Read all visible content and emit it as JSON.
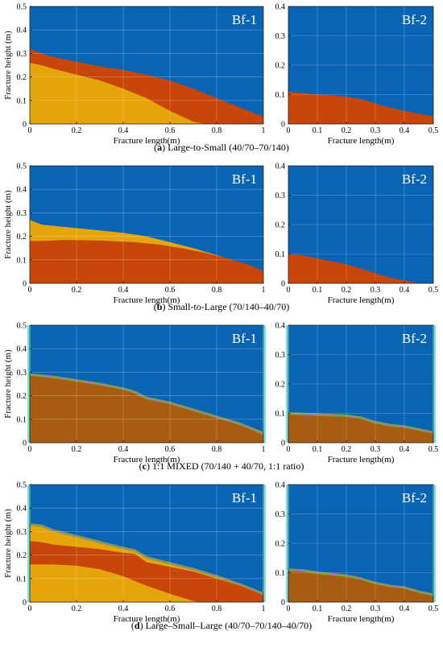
{
  "colors": {
    "blue": "#0a64b4",
    "orange": "#c8460a",
    "yellow": "#e6a50a",
    "cyan": "#78e6e6",
    "magenta": "#d050e6",
    "green": "#6ab81e",
    "olive": "#a85c12"
  },
  "chart_data": [
    {
      "type": "area",
      "title": "Bf-1",
      "xlabel": "Fracture length(m)",
      "ylabel": "Fracture height (m)",
      "xlim": [
        0,
        1
      ],
      "ylim": [
        0,
        0.5
      ],
      "xticks": [
        0,
        0.2,
        0.4,
        0.6,
        0.8,
        1
      ],
      "yticks": [
        0,
        0.1,
        0.2,
        0.3,
        0.4,
        0.5
      ],
      "grid": true,
      "layers": [
        {
          "color": "orange",
          "points": [
            [
              0,
              0.32
            ],
            [
              0.05,
              0.3
            ],
            [
              0.1,
              0.285
            ],
            [
              0.2,
              0.265
            ],
            [
              0.3,
              0.245
            ],
            [
              0.4,
              0.23
            ],
            [
              0.5,
              0.21
            ],
            [
              0.6,
              0.185
            ],
            [
              0.7,
              0.15
            ],
            [
              0.8,
              0.11
            ],
            [
              0.9,
              0.07
            ],
            [
              1,
              0.03
            ]
          ]
        },
        {
          "color": "yellow",
          "points": [
            [
              0,
              0.26
            ],
            [
              0.05,
              0.25
            ],
            [
              0.1,
              0.235
            ],
            [
              0.2,
              0.21
            ],
            [
              0.3,
              0.185
            ],
            [
              0.4,
              0.15
            ],
            [
              0.5,
              0.11
            ],
            [
              0.6,
              0.055
            ],
            [
              0.7,
              0.01
            ],
            [
              0.75,
              0
            ]
          ]
        }
      ]
    },
    {
      "type": "area",
      "title": "Bf-2",
      "xlabel": "Fracture length(m)",
      "ylabel": "",
      "xlim": [
        0,
        0.5
      ],
      "ylim": [
        0,
        0.4
      ],
      "xticks": [
        0,
        0.1,
        0.2,
        0.3,
        0.4,
        0.5
      ],
      "yticks": [
        0,
        0.1,
        0.2,
        0.3,
        0.4
      ],
      "grid": true,
      "layers": [
        {
          "color": "orange",
          "points": [
            [
              0,
              0.11
            ],
            [
              0.05,
              0.105
            ],
            [
              0.1,
              0.1
            ],
            [
              0.15,
              0.098
            ],
            [
              0.2,
              0.093
            ],
            [
              0.25,
              0.085
            ],
            [
              0.3,
              0.07
            ],
            [
              0.35,
              0.055
            ],
            [
              0.4,
              0.045
            ],
            [
              0.45,
              0.035
            ],
            [
              0.5,
              0.025
            ]
          ]
        }
      ]
    },
    {
      "type": "area",
      "title": "Bf-1",
      "xlabel": "Fracture length(m)",
      "ylabel": "Fracture height (m)",
      "xlim": [
        0,
        1
      ],
      "ylim": [
        0,
        0.5
      ],
      "xticks": [
        0,
        0.2,
        0.4,
        0.6,
        0.8,
        1
      ],
      "yticks": [
        0,
        0.1,
        0.2,
        0.3,
        0.4,
        0.5
      ],
      "grid": true,
      "layers": [
        {
          "color": "yellow",
          "points": [
            [
              0,
              0.27
            ],
            [
              0.05,
              0.25
            ],
            [
              0.1,
              0.245
            ],
            [
              0.2,
              0.235
            ],
            [
              0.3,
              0.225
            ],
            [
              0.4,
              0.215
            ],
            [
              0.5,
              0.2
            ],
            [
              0.6,
              0.175
            ],
            [
              0.7,
              0.15
            ],
            [
              0.8,
              0.12
            ],
            [
              0.9,
              0.09
            ],
            [
              1,
              0.05
            ]
          ]
        },
        {
          "color": "orange",
          "points": [
            [
              0,
              0.18
            ],
            [
              0.05,
              0.18
            ],
            [
              0.15,
              0.185
            ],
            [
              0.3,
              0.182
            ],
            [
              0.45,
              0.175
            ],
            [
              0.55,
              0.165
            ],
            [
              0.65,
              0.15
            ],
            [
              0.75,
              0.13
            ],
            [
              0.85,
              0.105
            ],
            [
              0.95,
              0.075
            ],
            [
              1,
              0.05
            ]
          ]
        }
      ]
    },
    {
      "type": "area",
      "title": "Bf-2",
      "xlabel": "Fracture length(m)",
      "ylabel": "",
      "xlim": [
        0,
        0.5
      ],
      "ylim": [
        0,
        0.4
      ],
      "xticks": [
        0,
        0.1,
        0.2,
        0.3,
        0.4,
        0.5
      ],
      "yticks": [
        0,
        0.1,
        0.2,
        0.3,
        0.4
      ],
      "grid": true,
      "layers": [
        {
          "color": "orange",
          "points": [
            [
              0,
              0.1
            ],
            [
              0.05,
              0.095
            ],
            [
              0.1,
              0.085
            ],
            [
              0.15,
              0.075
            ],
            [
              0.2,
              0.065
            ],
            [
              0.25,
              0.05
            ],
            [
              0.3,
              0.035
            ],
            [
              0.35,
              0.02
            ],
            [
              0.4,
              0.01
            ],
            [
              0.45,
              0
            ]
          ]
        }
      ]
    },
    {
      "type": "area",
      "title": "Bf-1",
      "xlabel": "Fracture length(m)",
      "ylabel": "Fracture height (m)",
      "xlim": [
        0,
        1
      ],
      "ylim": [
        0,
        0.5
      ],
      "xticks": [
        0,
        0.2,
        0.4,
        0.6,
        0.8,
        1
      ],
      "yticks": [
        0,
        0.1,
        0.2,
        0.3,
        0.4,
        0.5
      ],
      "grid": true,
      "layers": [
        {
          "color": "olive",
          "points": [
            [
              0,
              0.29
            ],
            [
              0.1,
              0.28
            ],
            [
              0.2,
              0.265
            ],
            [
              0.3,
              0.25
            ],
            [
              0.4,
              0.23
            ],
            [
              0.45,
              0.215
            ],
            [
              0.5,
              0.19
            ],
            [
              0.6,
              0.17
            ],
            [
              0.7,
              0.14
            ],
            [
              0.8,
              0.11
            ],
            [
              0.9,
              0.08
            ],
            [
              1,
              0.04
            ]
          ],
          "edge": [
            "green",
            "magenta"
          ]
        }
      ]
    },
    {
      "type": "area",
      "title": "Bf-2",
      "xlabel": "Fracture length(m)",
      "ylabel": "",
      "xlim": [
        0,
        0.5
      ],
      "ylim": [
        0,
        0.4
      ],
      "xticks": [
        0,
        0.1,
        0.2,
        0.3,
        0.4,
        0.5
      ],
      "yticks": [
        0,
        0.1,
        0.2,
        0.3,
        0.4
      ],
      "grid": true,
      "layers": [
        {
          "color": "olive",
          "points": [
            [
              0,
              0.1
            ],
            [
              0.05,
              0.098
            ],
            [
              0.1,
              0.096
            ],
            [
              0.15,
              0.094
            ],
            [
              0.2,
              0.092
            ],
            [
              0.25,
              0.085
            ],
            [
              0.3,
              0.07
            ],
            [
              0.35,
              0.06
            ],
            [
              0.4,
              0.055
            ],
            [
              0.45,
              0.045
            ],
            [
              0.5,
              0.035
            ]
          ],
          "edge": [
            "green",
            "magenta"
          ]
        }
      ]
    },
    {
      "type": "area",
      "title": "Bf-1",
      "xlabel": "Fracture length(m)",
      "ylabel": "Fracture height (m)",
      "xlim": [
        0,
        1
      ],
      "ylim": [
        0,
        0.5
      ],
      "xticks": [
        0,
        0.2,
        0.4,
        0.6,
        0.8,
        1
      ],
      "yticks": [
        0,
        0.1,
        0.2,
        0.3,
        0.4,
        0.5
      ],
      "grid": true,
      "layers": [
        {
          "color": "yellow",
          "points": [
            [
              0,
              0.33
            ],
            [
              0.05,
              0.325
            ],
            [
              0.1,
              0.305
            ],
            [
              0.2,
              0.28
            ],
            [
              0.3,
              0.255
            ],
            [
              0.4,
              0.23
            ],
            [
              0.45,
              0.22
            ],
            [
              0.5,
              0.19
            ],
            [
              0.6,
              0.165
            ],
            [
              0.7,
              0.14
            ],
            [
              0.8,
              0.11
            ],
            [
              0.9,
              0.075
            ],
            [
              1,
              0.035
            ]
          ],
          "edge": [
            "green",
            "magenta"
          ]
        },
        {
          "color": "orange",
          "points": [
            [
              0,
              0.26
            ],
            [
              0.05,
              0.255
            ],
            [
              0.1,
              0.245
            ],
            [
              0.2,
              0.235
            ],
            [
              0.3,
              0.225
            ],
            [
              0.4,
              0.21
            ],
            [
              0.45,
              0.205
            ],
            [
              0.5,
              0.17
            ],
            [
              0.6,
              0.15
            ],
            [
              0.7,
              0.13
            ],
            [
              0.8,
              0.1
            ],
            [
              0.9,
              0.07
            ],
            [
              1,
              0.03
            ]
          ]
        },
        {
          "color": "yellow",
          "points": [
            [
              0,
              0.16
            ],
            [
              0.1,
              0.16
            ],
            [
              0.2,
              0.155
            ],
            [
              0.3,
              0.14
            ],
            [
              0.4,
              0.11
            ],
            [
              0.5,
              0.07
            ],
            [
              0.6,
              0.035
            ],
            [
              0.7,
              0.005
            ],
            [
              0.72,
              0
            ]
          ]
        }
      ]
    },
    {
      "type": "area",
      "title": "Bf-2",
      "xlabel": "Fracture length(m)",
      "ylabel": "",
      "xlim": [
        0,
        0.5
      ],
      "ylim": [
        0,
        0.4
      ],
      "xticks": [
        0,
        0.1,
        0.2,
        0.3,
        0.4,
        0.5
      ],
      "yticks": [
        0,
        0.1,
        0.2,
        0.3,
        0.4
      ],
      "grid": true,
      "layers": [
        {
          "color": "olive",
          "points": [
            [
              0,
              0.11
            ],
            [
              0.05,
              0.108
            ],
            [
              0.1,
              0.1
            ],
            [
              0.15,
              0.095
            ],
            [
              0.2,
              0.09
            ],
            [
              0.25,
              0.08
            ],
            [
              0.3,
              0.065
            ],
            [
              0.35,
              0.055
            ],
            [
              0.4,
              0.05
            ],
            [
              0.45,
              0.035
            ],
            [
              0.5,
              0.025
            ]
          ],
          "edge": [
            "green",
            "magenta"
          ]
        }
      ]
    }
  ],
  "captions": [
    {
      "letter": "a",
      "text": " Large-to-Small (40/70–70/140)"
    },
    {
      "letter": "b",
      "text": " Small-to-Large (70/140–40/70)"
    },
    {
      "letter": "c",
      "text": " 1:1 MIXED (70/140 + 40/70, 1:1 ratio)"
    },
    {
      "letter": "d",
      "text": " Large–Small–Large (40/70–70/140–40/70)"
    }
  ]
}
